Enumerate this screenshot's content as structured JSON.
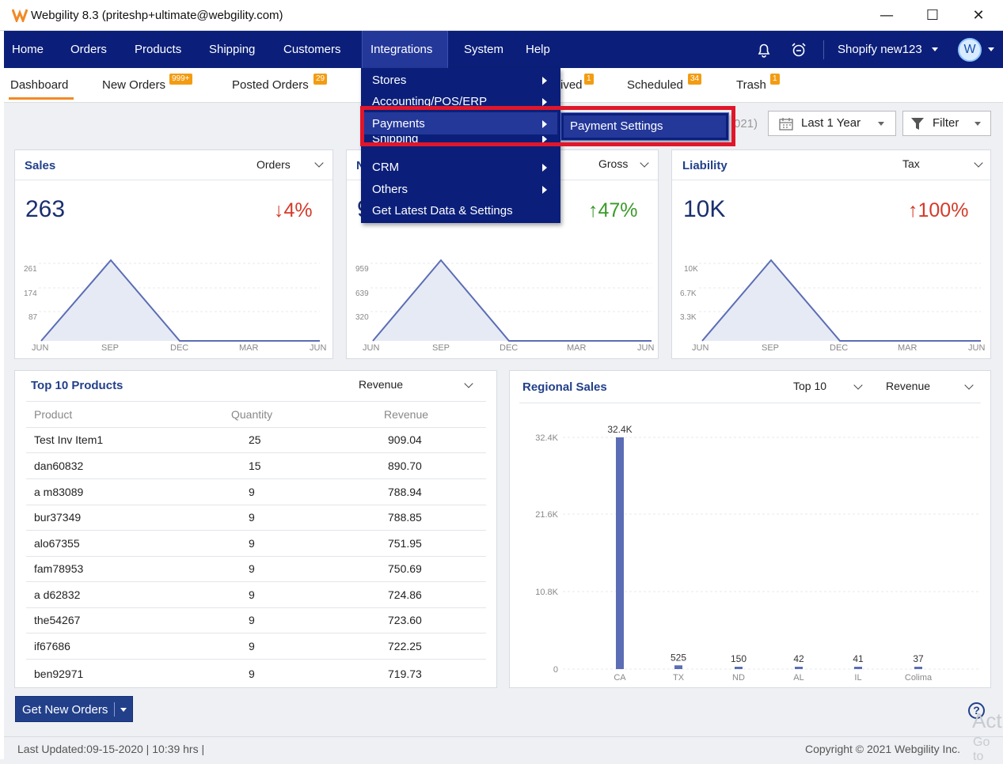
{
  "window": {
    "title": "Webgility 8.3 (priteshp+ultimate@webgility.com)",
    "controls": {
      "minimize": "—",
      "maximize": "☐",
      "close": "✕"
    }
  },
  "mainnav": {
    "items": [
      "Home",
      "Orders",
      "Products",
      "Shipping",
      "Customers",
      "Integrations",
      "System",
      "Help"
    ],
    "active": "Integrations",
    "store": "Shopify new123",
    "avatar": "W"
  },
  "subtabs": [
    {
      "label": "Dashboard",
      "badge": ""
    },
    {
      "label": "New Orders",
      "badge": "999+"
    },
    {
      "label": "Posted Orders",
      "badge": "29"
    },
    {
      "label": "ived",
      "badge": "1"
    },
    {
      "label": "Scheduled",
      "badge": "34"
    },
    {
      "label": "Trash",
      "badge": "1"
    }
  ],
  "toolbar": {
    "date_fragment": "021)",
    "range_label": "Last 1 Year",
    "filter_label": "Filter"
  },
  "menu": {
    "items": [
      {
        "label": "Stores",
        "arrow": true
      },
      {
        "label": "Accounting/POS/ERP",
        "arrow": true
      },
      {
        "label": "Payments",
        "arrow": true
      },
      {
        "label": "Shipping",
        "arrow": true
      },
      {
        "label": "CRM",
        "arrow": true
      },
      {
        "label": "Others",
        "arrow": true
      },
      {
        "label": "Get Latest Data & Settings",
        "arrow": false
      }
    ],
    "submenu": [
      "Payment Settings"
    ]
  },
  "cards": {
    "sales": {
      "title": "Sales",
      "selector": "Orders",
      "value": "263",
      "change": "↓4%",
      "y_ticks": [
        "261",
        "174",
        "87"
      ],
      "x_ticks": [
        "JUN",
        "SEP",
        "DEC",
        "MAR",
        "JUN"
      ]
    },
    "middle": {
      "title": "N",
      "selector": "Gross",
      "value": "9",
      "change": "↑47%",
      "y_ticks": [
        "959",
        "639",
        "320"
      ],
      "x_ticks": [
        "JUN",
        "SEP",
        "DEC",
        "MAR",
        "JUN"
      ]
    },
    "liability": {
      "title": "Liability",
      "selector": "Tax",
      "value": "10K",
      "change": "↑100%",
      "y_ticks": [
        "10K",
        "6.7K",
        "3.3K"
      ],
      "x_ticks": [
        "JUN",
        "SEP",
        "DEC",
        "MAR",
        "JUN"
      ]
    }
  },
  "top_products": {
    "title": "Top 10 Products",
    "selector": "Revenue",
    "headers": [
      "Product",
      "Quantity",
      "Revenue"
    ],
    "rows": [
      [
        "Test Inv Item1",
        "25",
        "909.04"
      ],
      [
        "dan60832",
        "15",
        "890.70"
      ],
      [
        "a m83089",
        "9",
        "788.94"
      ],
      [
        "bur37349",
        "9",
        "788.85"
      ],
      [
        "alo67355",
        "9",
        "751.95"
      ],
      [
        "fam78953",
        "9",
        "750.69"
      ],
      [
        "a d62832",
        "9",
        "724.86"
      ],
      [
        "the54267",
        "9",
        "723.60"
      ],
      [
        "if67686",
        "9",
        "722.25"
      ],
      [
        "ben92971",
        "9",
        "719.73"
      ]
    ]
  },
  "regional_sales": {
    "title": "Regional Sales",
    "selector_top": "Top 10",
    "selector_metric": "Revenue"
  },
  "chart_data": {
    "type": "bar",
    "categories": [
      "CA",
      "TX",
      "ND",
      "AL",
      "IL",
      "Colima"
    ],
    "values": [
      32400,
      525,
      150,
      42,
      41,
      37
    ],
    "value_labels": [
      "32.4K",
      "525",
      "150",
      "42",
      "41",
      "37"
    ],
    "y_ticks": [
      "32.4K",
      "21.6K",
      "10.8K",
      "0"
    ],
    "ylim": [
      0,
      32400
    ],
    "color": "#5b6db5"
  },
  "footer": {
    "get_orders": "Get New Orders",
    "last_updated": "Last Updated:09-15-2020 | 10:39 hrs |",
    "copyright": "Copyright © 2021 Webgility Inc.",
    "watermark1": "Act",
    "watermark2": "Go to"
  }
}
